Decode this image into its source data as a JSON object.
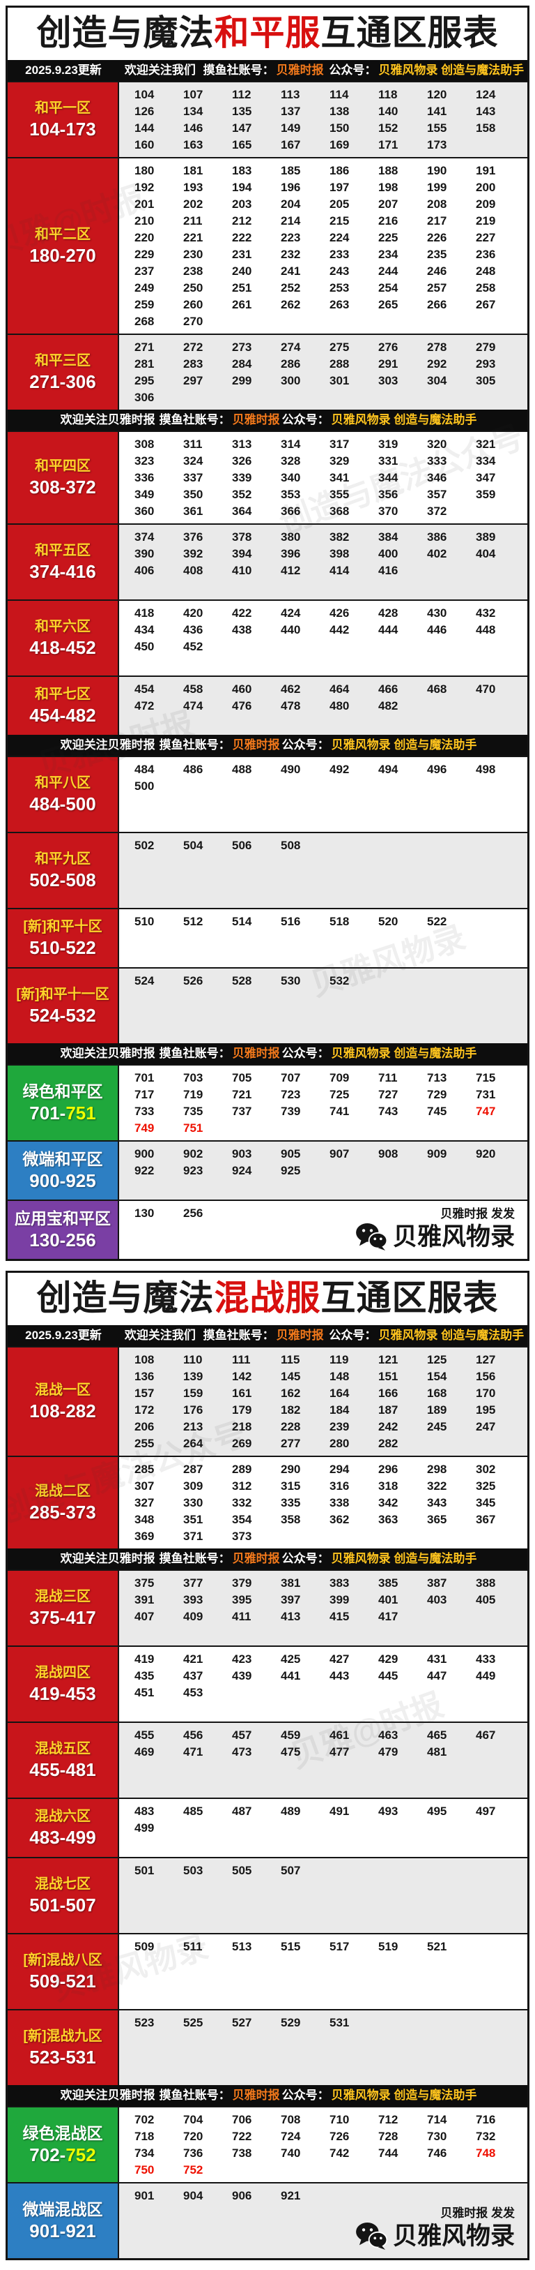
{
  "update_date": "2025.9.23更新",
  "banner_top": {
    "welcome": "欢迎关注我们",
    "account_label": "摸鱼社账号：",
    "account": "贝雅时报",
    "public_label": "公众号：",
    "publics": "贝雅风物录 创造与魔法助手"
  },
  "banner_inner": {
    "welcome": "欢迎关注贝雅时报",
    "account_label": "摸鱼社账号：",
    "account": "贝雅时报",
    "public_label": "公众号：",
    "publics": "贝雅风物录 创造与魔法助手"
  },
  "footer": {
    "publisher": "贝雅时报 发发",
    "brand": "贝雅风物录",
    "icon": "wechat-icon"
  },
  "watermarks": [
    "贝雅@时报",
    "创造与魔法公众号",
    "贝雅风物录"
  ],
  "colors": {
    "zone_red": "#c8151b",
    "zone_green": "#1fa83c",
    "zone_blue": "#2d7fc3",
    "zone_purple": "#7a3fa4",
    "title_highlight": "#d8100f",
    "banner_account": "#f3791b",
    "banner_publics": "#ffc41e",
    "number_red": "#ee1000",
    "row_gray": "#eaeaea"
  },
  "tables": [
    {
      "title": {
        "prefix": "创造与魔法",
        "highlight": "和平服",
        "suffix": "互通区服表"
      },
      "zones": [
        {
          "name": "和平一区",
          "range": "104-173",
          "color": "red",
          "shade": "gray",
          "min_lines": 4,
          "numbers": [
            104,
            107,
            112,
            113,
            114,
            118,
            120,
            124,
            126,
            134,
            135,
            137,
            138,
            140,
            141,
            143,
            144,
            146,
            147,
            149,
            150,
            152,
            155,
            158,
            160,
            163,
            165,
            167,
            169,
            171,
            173
          ],
          "reds": []
        },
        {
          "name": "和平二区",
          "range": "180-270",
          "color": "red",
          "shade": "white",
          "min_lines": 10,
          "numbers": [
            180,
            181,
            183,
            185,
            186,
            188,
            190,
            191,
            192,
            193,
            194,
            196,
            197,
            198,
            199,
            200,
            201,
            202,
            203,
            204,
            205,
            207,
            208,
            209,
            210,
            211,
            212,
            214,
            215,
            216,
            217,
            219,
            220,
            221,
            222,
            223,
            224,
            225,
            226,
            227,
            229,
            230,
            231,
            232,
            233,
            234,
            235,
            236,
            237,
            238,
            240,
            241,
            243,
            244,
            246,
            248,
            249,
            250,
            251,
            252,
            253,
            254,
            257,
            258,
            259,
            260,
            261,
            262,
            263,
            265,
            266,
            267,
            268,
            270
          ],
          "reds": []
        },
        {
          "name": "和平三区",
          "range": "271-306",
          "color": "red",
          "shade": "gray",
          "min_lines": 4,
          "numbers": [
            271,
            272,
            273,
            274,
            275,
            276,
            278,
            279,
            281,
            283,
            284,
            286,
            288,
            291,
            292,
            293,
            295,
            297,
            299,
            300,
            301,
            303,
            304,
            305,
            306
          ],
          "reds": []
        },
        {
          "banner": true
        },
        {
          "name": "和平四区",
          "range": "308-372",
          "color": "red",
          "shade": "white",
          "min_lines": 5,
          "numbers": [
            308,
            311,
            313,
            314,
            317,
            319,
            320,
            321,
            323,
            324,
            326,
            328,
            329,
            331,
            333,
            334,
            336,
            337,
            339,
            340,
            341,
            344,
            346,
            347,
            349,
            350,
            352,
            353,
            355,
            356,
            357,
            359,
            360,
            361,
            364,
            366,
            368,
            370,
            372
          ],
          "reds": []
        },
        {
          "name": "和平五区",
          "range": "374-416",
          "color": "red",
          "shade": "gray",
          "min_lines": 4,
          "numbers": [
            374,
            376,
            378,
            380,
            382,
            384,
            386,
            389,
            390,
            392,
            394,
            396,
            398,
            400,
            402,
            404,
            406,
            408,
            410,
            412,
            414,
            416
          ],
          "reds": []
        },
        {
          "name": "和平六区",
          "range": "418-452",
          "color": "red",
          "shade": "white",
          "min_lines": 4,
          "numbers": [
            418,
            420,
            422,
            424,
            426,
            428,
            430,
            432,
            434,
            436,
            438,
            440,
            442,
            444,
            446,
            448,
            450,
            452
          ],
          "reds": []
        },
        {
          "name": "和平七区",
          "range": "454-482",
          "color": "red",
          "shade": "gray",
          "min_lines": 3,
          "numbers": [
            454,
            458,
            460,
            462,
            464,
            466,
            468,
            470,
            472,
            474,
            476,
            478,
            480,
            482
          ],
          "reds": []
        },
        {
          "banner": true
        },
        {
          "name": "和平八区",
          "range": "484-500",
          "color": "red",
          "shade": "white",
          "min_lines": 4,
          "numbers": [
            484,
            486,
            488,
            490,
            492,
            494,
            496,
            498,
            500
          ],
          "reds": []
        },
        {
          "name": "和平九区",
          "range": "502-508",
          "color": "red",
          "shade": "gray",
          "min_lines": 4,
          "numbers": [
            502,
            504,
            506,
            508
          ],
          "reds": []
        },
        {
          "name": "[新]和平十区",
          "range": "510-522",
          "color": "red",
          "shade": "white",
          "min_lines": 3,
          "numbers": [
            510,
            512,
            514,
            516,
            518,
            520,
            522
          ],
          "reds": []
        },
        {
          "name": "[新]和平十一区",
          "range": "524-532",
          "color": "red",
          "shade": "gray",
          "min_lines": 4,
          "numbers": [
            524,
            526,
            528,
            530,
            532
          ],
          "reds": []
        },
        {
          "banner": true
        },
        {
          "name": "绿色和平区",
          "range": "701-751",
          "range_prefix": "701-",
          "range_highlight": "751",
          "color": "green",
          "shade": "white",
          "min_lines": 4,
          "numbers": [
            701,
            703,
            705,
            707,
            709,
            711,
            713,
            715,
            717,
            719,
            721,
            723,
            725,
            727,
            729,
            731,
            733,
            735,
            737,
            739,
            741,
            743,
            745,
            747,
            749,
            751
          ],
          "reds": [
            747,
            749,
            751
          ]
        },
        {
          "name": "微端和平区",
          "range": "900-925",
          "color": "blue",
          "shade": "gray",
          "min_lines": 3,
          "numbers": [
            900,
            902,
            903,
            905,
            907,
            908,
            909,
            920,
            922,
            923,
            924,
            925
          ],
          "reds": []
        },
        {
          "name": "应用宝和平区",
          "range": "130-256",
          "color": "purple",
          "shade": "white",
          "min_lines": 3,
          "numbers": [
            130,
            256
          ],
          "reds": []
        }
      ]
    },
    {
      "title": {
        "prefix": "创造与魔法",
        "highlight": "混战服",
        "suffix": "互通区服表"
      },
      "zones": [
        {
          "name": "混战一区",
          "range": "108-282",
          "color": "red",
          "shade": "gray",
          "min_lines": 6,
          "numbers": [
            108,
            110,
            111,
            115,
            119,
            121,
            125,
            127,
            136,
            139,
            142,
            145,
            148,
            151,
            154,
            156,
            157,
            159,
            161,
            162,
            164,
            166,
            168,
            170,
            172,
            176,
            179,
            182,
            184,
            187,
            189,
            195,
            206,
            213,
            218,
            228,
            239,
            242,
            245,
            247,
            255,
            264,
            269,
            277,
            280,
            282
          ],
          "reds": []
        },
        {
          "name": "混战二区",
          "range": "285-373",
          "color": "red",
          "shade": "white",
          "min_lines": 5,
          "numbers": [
            285,
            287,
            289,
            290,
            294,
            296,
            298,
            302,
            307,
            309,
            312,
            315,
            316,
            318,
            322,
            325,
            327,
            330,
            332,
            335,
            338,
            342,
            343,
            345,
            348,
            351,
            354,
            358,
            362,
            363,
            365,
            367,
            369,
            371,
            373
          ],
          "reds": []
        },
        {
          "banner": true
        },
        {
          "name": "混战三区",
          "range": "375-417",
          "color": "red",
          "shade": "gray",
          "min_lines": 4,
          "numbers": [
            375,
            377,
            379,
            381,
            383,
            385,
            387,
            388,
            391,
            393,
            395,
            397,
            399,
            401,
            403,
            405,
            407,
            409,
            411,
            413,
            415,
            417
          ],
          "reds": []
        },
        {
          "name": "混战四区",
          "range": "419-453",
          "color": "red",
          "shade": "white",
          "min_lines": 4,
          "numbers": [
            419,
            421,
            423,
            425,
            427,
            429,
            431,
            433,
            435,
            437,
            439,
            441,
            443,
            445,
            447,
            449,
            451,
            453
          ],
          "reds": []
        },
        {
          "name": "混战五区",
          "range": "455-481",
          "color": "red",
          "shade": "gray",
          "min_lines": 4,
          "numbers": [
            455,
            456,
            457,
            459,
            461,
            463,
            465,
            467,
            469,
            471,
            473,
            475,
            477,
            479,
            481
          ],
          "reds": []
        },
        {
          "name": "混战六区",
          "range": "483-499",
          "color": "red",
          "shade": "white",
          "min_lines": 3,
          "numbers": [
            483,
            485,
            487,
            489,
            491,
            493,
            495,
            497,
            499
          ],
          "reds": []
        },
        {
          "name": "混战七区",
          "range": "501-507",
          "color": "red",
          "shade": "gray",
          "min_lines": 4,
          "numbers": [
            501,
            503,
            505,
            507
          ],
          "reds": []
        },
        {
          "name": "[新]混战八区",
          "range": "509-521",
          "color": "red",
          "shade": "white",
          "min_lines": 4,
          "numbers": [
            509,
            511,
            513,
            515,
            517,
            519,
            521
          ],
          "reds": []
        },
        {
          "name": "[新]混战九区",
          "range": "523-531",
          "color": "red",
          "shade": "gray",
          "min_lines": 4,
          "numbers": [
            523,
            525,
            527,
            529,
            531
          ],
          "reds": []
        },
        {
          "banner": true
        },
        {
          "name": "绿色混战区",
          "range": "702-752",
          "range_prefix": "702-",
          "range_highlight": "752",
          "color": "green",
          "shade": "white",
          "min_lines": 4,
          "numbers": [
            702,
            704,
            706,
            708,
            710,
            712,
            714,
            716,
            718,
            720,
            722,
            724,
            726,
            728,
            730,
            732,
            734,
            736,
            738,
            740,
            742,
            744,
            746,
            748,
            750,
            752
          ],
          "reds": [
            748,
            750,
            752
          ]
        },
        {
          "name": "微端混战区",
          "range": "901-921",
          "color": "blue",
          "shade": "gray",
          "min_lines": 4,
          "numbers": [
            901,
            904,
            906,
            921
          ],
          "reds": []
        }
      ]
    }
  ]
}
